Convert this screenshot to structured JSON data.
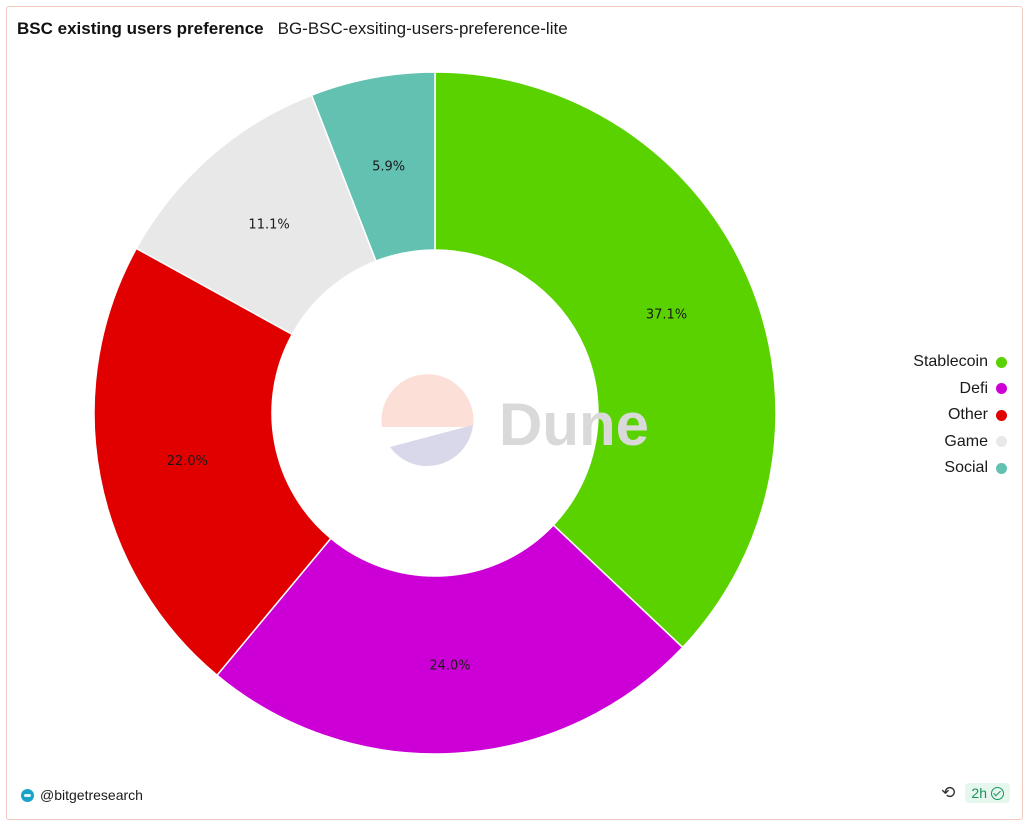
{
  "header": {
    "title": "BSC existing users preference",
    "subtitle": "BG-BSC-exsiting-users-preference-lite"
  },
  "chart_data": {
    "type": "pie",
    "donut": true,
    "slices": [
      {
        "label": "Stablecoin",
        "value": 37.1,
        "display": "37.1%",
        "color": "#5ad200"
      },
      {
        "label": "Defi",
        "value": 24.0,
        "display": "24.0%",
        "color": "#cc00d6"
      },
      {
        "label": "Other",
        "value": 22.0,
        "display": "22.0%",
        "color": "#e00000"
      },
      {
        "label": "Game",
        "value": 11.1,
        "display": "11.1%",
        "color": "#e8e8e8"
      },
      {
        "label": "Social",
        "value": 5.9,
        "display": "5.9%",
        "color": "#62c1b1"
      }
    ],
    "legend_position": "right",
    "watermark": "Dune"
  },
  "footer": {
    "author": "@bitgetresearch",
    "refresh_icon": "refresh-icon",
    "age_badge": "2h"
  }
}
